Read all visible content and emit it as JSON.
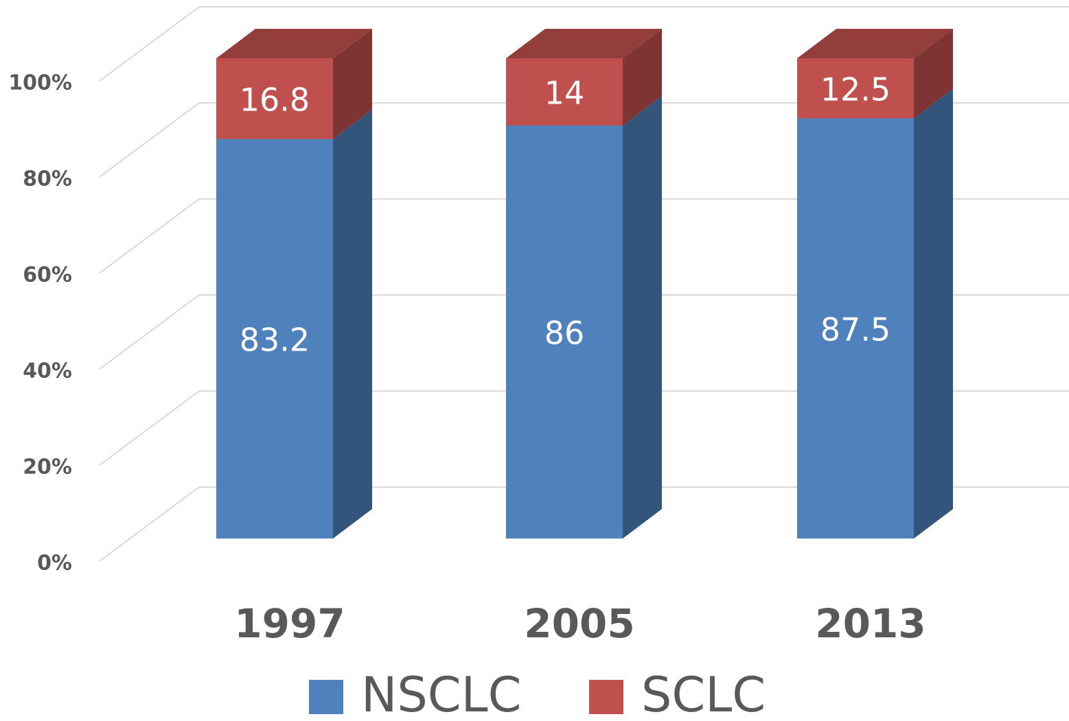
{
  "chart_data": {
    "type": "bar3d_stacked",
    "categories": [
      "1997",
      "2005",
      "2013"
    ],
    "series": [
      {
        "name": "NSCLC",
        "color": "#4f81bd",
        "values": [
          83.2,
          86,
          87.5
        ]
      },
      {
        "name": "SCLC",
        "color": "#c0504d",
        "values": [
          16.8,
          14,
          12.5
        ]
      }
    ],
    "ylim": [
      0,
      100
    ],
    "yticks": [
      {
        "value": 0,
        "label": "0%"
      },
      {
        "value": 20,
        "label": "20%"
      },
      {
        "value": 40,
        "label": "40%"
      },
      {
        "value": 60,
        "label": "60%"
      },
      {
        "value": 80,
        "label": "80%"
      },
      {
        "value": 100,
        "label": "100%"
      }
    ],
    "grid": true,
    "legend": "bottom"
  }
}
